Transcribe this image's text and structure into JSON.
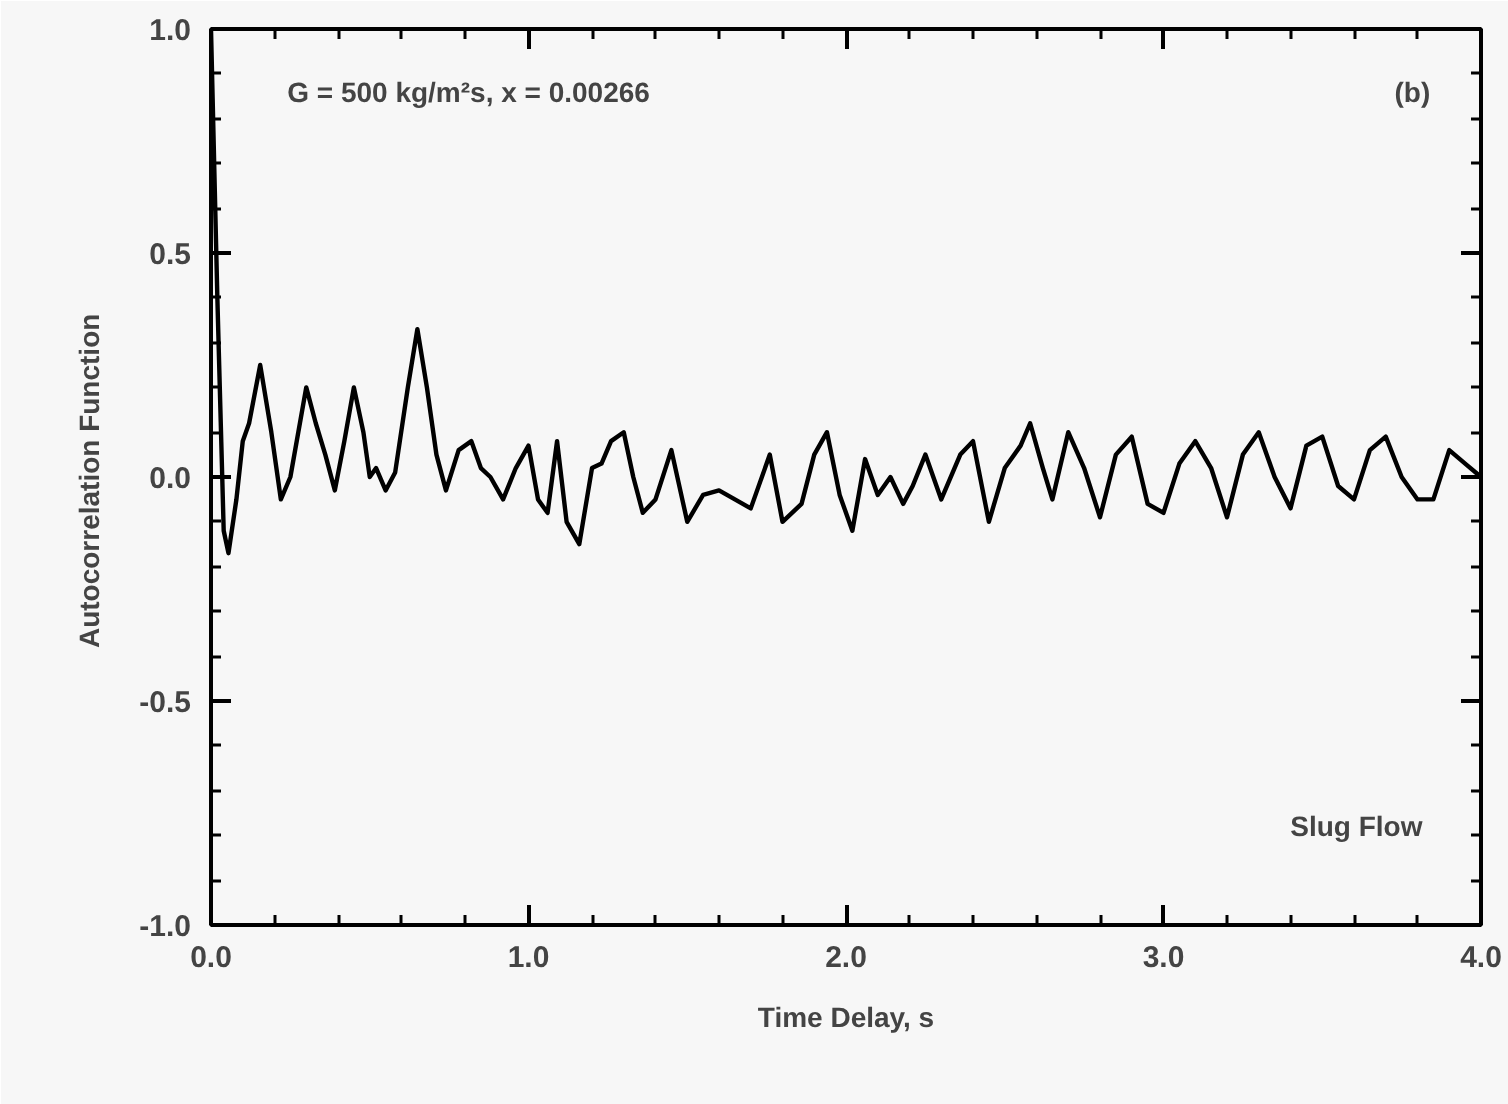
{
  "chart_data": {
    "type": "line",
    "xlabel": "Time Delay, s",
    "ylabel": "Autocorrelation  Function",
    "annotations": [
      "G = 500  kg/m²s,  x = 0.00266",
      "(b)",
      "Slug  Flow"
    ],
    "xlim": [
      0,
      4
    ],
    "ylim": [
      -1,
      1
    ],
    "xticks": [
      {
        "value": 0,
        "label": "0.0"
      },
      {
        "value": 0.2,
        "label": null
      },
      {
        "value": 0.4,
        "label": null
      },
      {
        "value": 0.6,
        "label": null
      },
      {
        "value": 0.8,
        "label": null
      },
      {
        "value": 1,
        "label": "1.0"
      },
      {
        "value": 1.2,
        "label": null
      },
      {
        "value": 1.4,
        "label": null
      },
      {
        "value": 1.6,
        "label": null
      },
      {
        "value": 1.8,
        "label": null
      },
      {
        "value": 2,
        "label": "2.0"
      },
      {
        "value": 2.2,
        "label": null
      },
      {
        "value": 2.4,
        "label": null
      },
      {
        "value": 2.6,
        "label": null
      },
      {
        "value": 2.8,
        "label": null
      },
      {
        "value": 3,
        "label": "3.0"
      },
      {
        "value": 3.2,
        "label": null
      },
      {
        "value": 3.4,
        "label": null
      },
      {
        "value": 3.6,
        "label": null
      },
      {
        "value": 3.8,
        "label": null
      },
      {
        "value": 4,
        "label": "4.0"
      }
    ],
    "yticks": [
      {
        "value": -1,
        "label": "-1.0"
      },
      {
        "value": -0.9,
        "label": null
      },
      {
        "value": -0.8,
        "label": null
      },
      {
        "value": -0.7,
        "label": null
      },
      {
        "value": -0.6,
        "label": null
      },
      {
        "value": -0.5,
        "label": "-0.5"
      },
      {
        "value": -0.4,
        "label": null
      },
      {
        "value": -0.3,
        "label": null
      },
      {
        "value": -0.2,
        "label": null
      },
      {
        "value": -0.1,
        "label": null
      },
      {
        "value": 0,
        "label": "0.0"
      },
      {
        "value": 0.1,
        "label": null
      },
      {
        "value": 0.2,
        "label": null
      },
      {
        "value": 0.3,
        "label": null
      },
      {
        "value": 0.4,
        "label": null
      },
      {
        "value": 0.5,
        "label": "0.5"
      },
      {
        "value": 0.6,
        "label": null
      },
      {
        "value": 0.7,
        "label": null
      },
      {
        "value": 0.8,
        "label": null
      },
      {
        "value": 0.9,
        "label": null
      },
      {
        "value": 1,
        "label": "1.0"
      }
    ],
    "grid": false,
    "marker": "none",
    "line_style": "solid",
    "series": [
      {
        "color": "#000000",
        "x": [
          0,
          0.02,
          0.04,
          0.055,
          0.08,
          0.1,
          0.12,
          0.155,
          0.19,
          0.22,
          0.25,
          0.3,
          0.33,
          0.36,
          0.39,
          0.42,
          0.45,
          0.48,
          0.5,
          0.52,
          0.55,
          0.58,
          0.62,
          0.65,
          0.68,
          0.71,
          0.74,
          0.78,
          0.82,
          0.85,
          0.88,
          0.92,
          0.96,
          1.0,
          1.03,
          1.06,
          1.09,
          1.12,
          1.16,
          1.2,
          1.23,
          1.26,
          1.3,
          1.33,
          1.36,
          1.4,
          1.45,
          1.5,
          1.55,
          1.6,
          1.65,
          1.7,
          1.76,
          1.8,
          1.86,
          1.9,
          1.94,
          1.98,
          2.02,
          2.06,
          2.1,
          2.14,
          2.18,
          2.21,
          2.25,
          2.3,
          2.36,
          2.4,
          2.45,
          2.5,
          2.55,
          2.58,
          2.62,
          2.65,
          2.7,
          2.75,
          2.8,
          2.85,
          2.9,
          2.95,
          3.0,
          3.05,
          3.1,
          3.15,
          3.2,
          3.25,
          3.3,
          3.35,
          3.4,
          3.45,
          3.5,
          3.55,
          3.6,
          3.65,
          3.7,
          3.75,
          3.8,
          3.85,
          3.9,
          3.95,
          4.0
        ],
        "values": [
          1.0,
          0.4,
          -0.12,
          -0.17,
          -0.05,
          0.08,
          0.12,
          0.25,
          0.1,
          -0.05,
          0.0,
          0.2,
          0.12,
          0.05,
          -0.03,
          0.08,
          0.2,
          0.1,
          0.0,
          0.02,
          -0.03,
          0.01,
          0.2,
          0.33,
          0.2,
          0.05,
          -0.03,
          0.06,
          0.08,
          0.02,
          0.0,
          -0.05,
          0.02,
          0.07,
          -0.05,
          -0.08,
          0.08,
          -0.1,
          -0.15,
          0.02,
          0.03,
          0.08,
          0.1,
          0.0,
          -0.08,
          -0.05,
          0.06,
          -0.1,
          -0.04,
          -0.03,
          -0.05,
          -0.07,
          0.05,
          -0.1,
          -0.06,
          0.05,
          0.1,
          -0.04,
          -0.12,
          0.04,
          -0.04,
          0.0,
          -0.06,
          -0.02,
          0.05,
          -0.05,
          0.05,
          0.08,
          -0.1,
          0.02,
          0.07,
          0.12,
          0.02,
          -0.05,
          0.1,
          0.02,
          -0.09,
          0.05,
          0.09,
          -0.06,
          -0.08,
          0.03,
          0.08,
          0.02,
          -0.09,
          0.05,
          0.1,
          0.0,
          -0.07,
          0.07,
          0.09,
          -0.02,
          -0.05,
          0.06,
          0.09,
          0.0,
          -0.05,
          -0.05,
          0.06,
          0.03,
          0.0
        ]
      }
    ]
  }
}
